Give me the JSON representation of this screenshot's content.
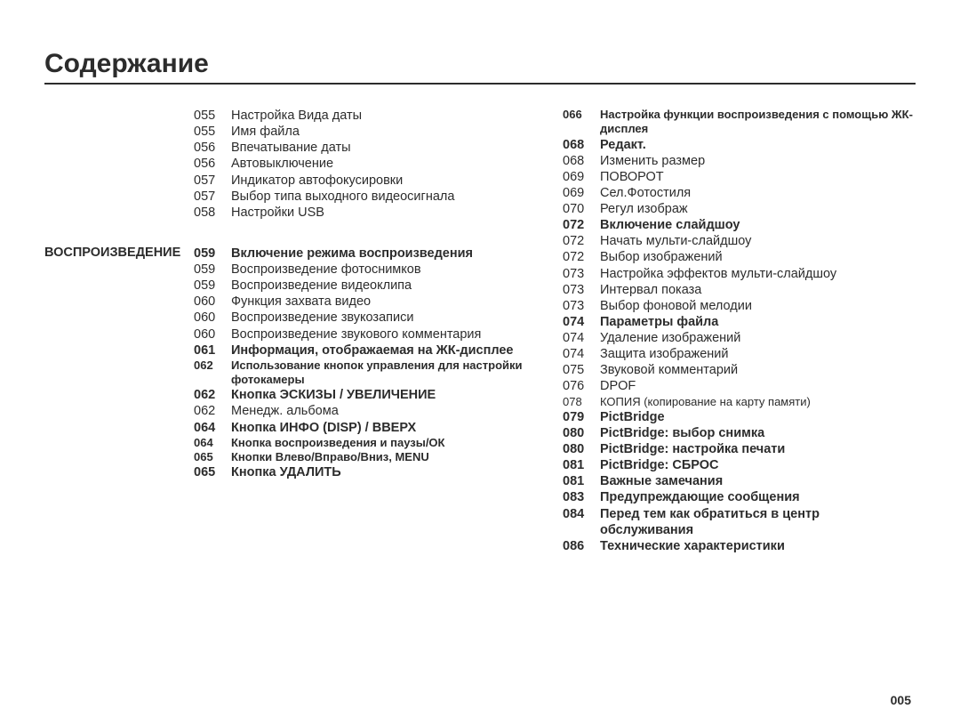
{
  "title": "Содержание",
  "pageNumber": "005",
  "sectionLabel": "ВОСПРОИЗВЕДЕНИЕ",
  "col1a": [
    {
      "num": "055",
      "txt": "Настройка Вида даты"
    },
    {
      "num": "055",
      "txt": "Имя файла"
    },
    {
      "num": "056",
      "txt": "Впечатывание даты"
    },
    {
      "num": "056",
      "txt": "Автовыключение"
    },
    {
      "num": "057",
      "txt": "Индикатор автофокусировки"
    },
    {
      "num": "057",
      "txt": "Выбор типа выходного видеосигнала"
    },
    {
      "num": "058",
      "txt": "Настройки USB"
    }
  ],
  "col1b": [
    {
      "num": "059",
      "txt": "Включение режима воспроизведения",
      "bold": true
    },
    {
      "num": "059",
      "txt": "Воспроизведение фотоснимков"
    },
    {
      "num": "059",
      "txt": "Воспроизведение видеоклипа"
    },
    {
      "num": "060",
      "txt": "Функция захвата видео"
    },
    {
      "num": "060",
      "txt": "Воспроизведение звукозаписи"
    },
    {
      "num": "060",
      "txt": "Воспроизведение звукового комментария"
    },
    {
      "num": "061",
      "txt": "Информация, отображаемая на ЖК-дисплее",
      "bold": true
    },
    {
      "num": "062",
      "txt": "Использование кнопок управления для настройки фотокамеры",
      "bold": true,
      "cond": true
    },
    {
      "num": "062",
      "txt": "Кнопка ЭСКИЗЫ / УВЕЛИЧЕНИЕ",
      "bold": true
    },
    {
      "num": "062",
      "txt": "Менедж. альбома"
    },
    {
      "num": "064",
      "txt": "Кнопка ИНФО (DISP) / ВВЕРХ",
      "bold": true
    },
    {
      "num": "064",
      "txt": "Кнопка воспроизведения и паузы/ОК",
      "bold": true,
      "cond": true
    },
    {
      "num": "065",
      "txt": "Кнопки Влево/Вправо/Вниз, MENU",
      "bold": true,
      "cond": true
    },
    {
      "num": "065",
      "txt": "Кнопка УДАЛИТЬ",
      "bold": true
    }
  ],
  "col2": [
    {
      "num": "066",
      "txt": "Настройка функции воспроизведения с помощью ЖК-дисплея",
      "bold": true,
      "cond": true
    },
    {
      "num": "068",
      "txt": "Редакт.",
      "bold": true
    },
    {
      "num": "068",
      "txt": "Изменить размер"
    },
    {
      "num": "069",
      "txt": "ПОВОРОТ"
    },
    {
      "num": "069",
      "txt": "Сел.Фотостиля"
    },
    {
      "num": "070",
      "txt": "Регул изображ"
    },
    {
      "num": "072",
      "txt": "Включение слайдшоу",
      "bold": true
    },
    {
      "num": "072",
      "txt": "Начать мульти-слайдшоу"
    },
    {
      "num": "072",
      "txt": "Выбор изображений"
    },
    {
      "num": "073",
      "txt": "Настройка эффектов мульти-слайдшоу"
    },
    {
      "num": "073",
      "txt": "Интервал показа"
    },
    {
      "num": "073",
      "txt": "Выбор фоновой мелодии"
    },
    {
      "num": "074",
      "txt": "Параметры файла",
      "bold": true
    },
    {
      "num": "074",
      "txt": "Удаление изображений"
    },
    {
      "num": "074",
      "txt": "Защита изображений"
    },
    {
      "num": "075",
      "txt": "Звуковой комментарий"
    },
    {
      "num": "076",
      "txt": "DPOF"
    },
    {
      "num": "078",
      "txt": "КОПИЯ (копирование на карту памяти)",
      "cond": true
    },
    {
      "num": "079",
      "txt": "PictBridge",
      "bold": true
    },
    {
      "num": "080",
      "txt": "PictBridge: выбор снимка",
      "bold": true
    },
    {
      "num": "080",
      "txt": "PictBridge: настройка печати",
      "bold": true
    },
    {
      "num": "081",
      "txt": "PictBridge: СБРОС",
      "bold": true
    },
    {
      "num": "081",
      "txt": "Важные замечания",
      "bold": true
    },
    {
      "num": "083",
      "txt": "Предупреждающие сообщения",
      "bold": true
    },
    {
      "num": "084",
      "txt": "Перед тем как обратиться в центр обслуживания",
      "bold": true
    },
    {
      "num": "086",
      "txt": "Технические характеристики",
      "bold": true
    }
  ]
}
